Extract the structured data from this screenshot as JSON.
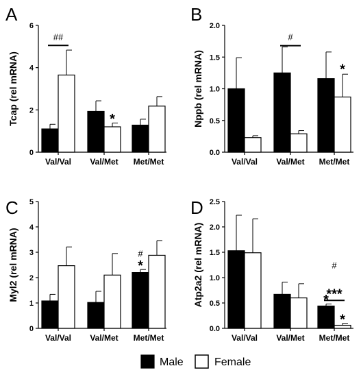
{
  "legend": {
    "male": "Male",
    "female": "Female"
  },
  "colors": {
    "male": "#000000",
    "female": "#ffffff",
    "stroke": "#000000"
  },
  "chart_data": [
    {
      "type": "bar",
      "panel": "A",
      "ylabel": "Tcap (rel mRNA)",
      "categories": [
        "Val/Val",
        "Val/Met",
        "Met/Met"
      ],
      "ylim": [
        0,
        6
      ],
      "yticks": [
        "0",
        "2",
        "4",
        "6"
      ],
      "series": [
        {
          "name": "Male",
          "values": [
            1.1,
            1.93,
            1.28
          ],
          "errors": [
            0.22,
            0.5,
            0.28
          ]
        },
        {
          "name": "Female",
          "values": [
            3.65,
            1.2,
            2.18
          ],
          "errors": [
            1.18,
            0.18,
            0.45
          ]
        }
      ],
      "annotations": [
        {
          "text": "##",
          "kind": "bracket",
          "category": 0,
          "y": 5.05
        },
        {
          "text": "*",
          "kind": "star",
          "category": 1,
          "series": 1,
          "y": 1.5
        }
      ]
    },
    {
      "type": "bar",
      "panel": "B",
      "ylabel": "Nppb (rel mRNA)",
      "categories": [
        "Val/Val",
        "Val/Met",
        "Met/Met"
      ],
      "ylim": [
        0,
        2.0
      ],
      "yticks": [
        "0.0",
        "0.5",
        "1.0",
        "1.5",
        "2.0"
      ],
      "series": [
        {
          "name": "Male",
          "values": [
            1.0,
            1.25,
            1.16
          ],
          "errors": [
            0.49,
            0.41,
            0.42
          ]
        },
        {
          "name": "Female",
          "values": [
            0.23,
            0.29,
            0.87
          ],
          "errors": [
            0.03,
            0.05,
            0.36
          ]
        }
      ],
      "annotations": [
        {
          "text": "#",
          "kind": "bracket",
          "category": 1,
          "y": 1.68
        },
        {
          "text": "*",
          "kind": "star",
          "category": 2,
          "series": 1,
          "y": 1.28
        }
      ]
    },
    {
      "type": "bar",
      "panel": "C",
      "ylabel": "Myl2 (rel mRNA)",
      "categories": [
        "Val/Val",
        "Val/Met",
        "Met/Met"
      ],
      "ylim": [
        0,
        5
      ],
      "yticks": [
        "0",
        "1",
        "2",
        "3",
        "4",
        "5"
      ],
      "series": [
        {
          "name": "Male",
          "values": [
            1.08,
            1.02,
            2.2
          ],
          "errors": [
            0.26,
            0.44,
            0.12
          ]
        },
        {
          "name": "Female",
          "values": [
            2.47,
            2.1,
            2.88
          ],
          "errors": [
            0.74,
            0.85,
            0.58
          ]
        }
      ],
      "annotations": [
        {
          "text": "*",
          "kind": "star",
          "category": 2,
          "series": 0,
          "y": 2.4
        },
        {
          "text": "#",
          "kind": "text",
          "category": 2,
          "series": 0,
          "y": 2.83
        }
      ]
    },
    {
      "type": "bar",
      "panel": "D",
      "ylabel": "Atp2a2 (rel mRNA)",
      "categories": [
        "Val/Val",
        "Val/Met",
        "Met/Met"
      ],
      "ylim": [
        0,
        2.5
      ],
      "yticks": [
        "0.0",
        "0.5",
        "1.0",
        "1.5",
        "2.0",
        "2.5"
      ],
      "series": [
        {
          "name": "Male",
          "values": [
            1.53,
            0.67,
            0.44
          ],
          "errors": [
            0.7,
            0.24,
            0.04
          ]
        },
        {
          "name": "Female",
          "values": [
            1.49,
            0.6,
            0.06
          ],
          "errors": [
            0.67,
            0.28,
            0.04
          ]
        }
      ],
      "annotations": [
        {
          "text": "*",
          "kind": "star",
          "category": 2,
          "series": 0,
          "y": 0.53
        },
        {
          "text": "*",
          "kind": "star",
          "category": 2,
          "series": 1,
          "y": 0.14
        },
        {
          "text": "***",
          "kind": "bracket",
          "category": 2,
          "y": 0.55
        },
        {
          "text": "#",
          "kind": "text",
          "category": 2,
          "y": 1.18
        }
      ]
    }
  ]
}
